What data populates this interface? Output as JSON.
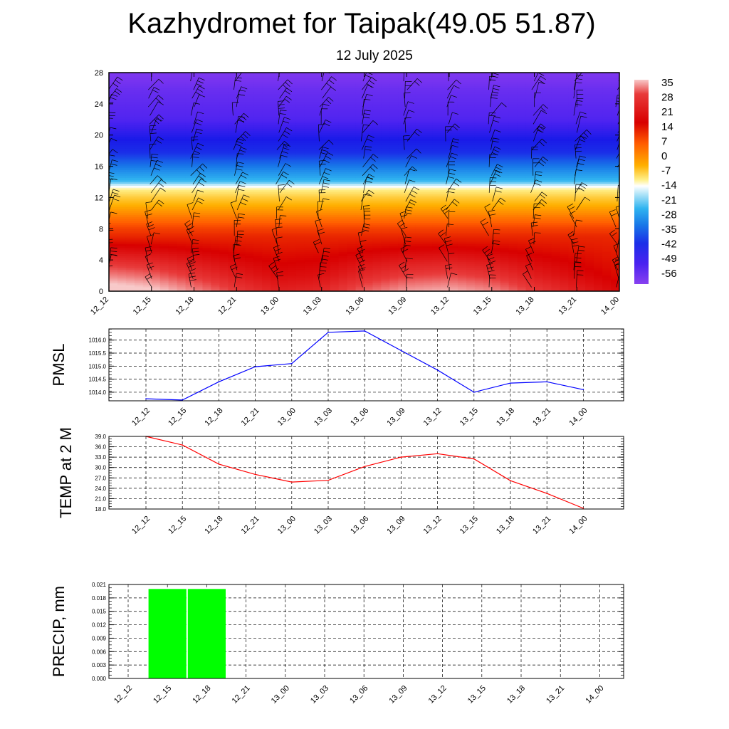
{
  "title": "Kazhydromet for Taipak(49.05 51.87)",
  "subtitle": "12 July 2025",
  "time_labels": [
    "12_12",
    "12_15",
    "12_18",
    "12_21",
    "13_00",
    "13_03",
    "13_06",
    "13_09",
    "13_12",
    "13_15",
    "13_18",
    "13_21",
    "14_00"
  ],
  "colors": {
    "pmsl_line": "#0000ff",
    "temp_line": "#ff0000",
    "precip_bar": "#00ff00",
    "grid": "#000000"
  },
  "chart_data": [
    {
      "type": "heatmap",
      "title": "",
      "xlabel": "",
      "ylabel": "",
      "x_categories": [
        "12_12",
        "12_15",
        "12_18",
        "12_21",
        "13_00",
        "13_03",
        "13_06",
        "13_09",
        "13_12",
        "13_15",
        "13_18",
        "13_21",
        "14_00"
      ],
      "y_ticks": [
        0,
        4,
        8,
        12,
        16,
        20,
        24,
        28
      ],
      "ylim": [
        0,
        28
      ],
      "colorbar_labels": [
        "35",
        "28",
        "21",
        "14",
        "7",
        "0",
        "-7",
        "-14",
        "-21",
        "-28",
        "-35",
        "-42",
        "-49",
        "-56"
      ],
      "colorbar_range": [
        -63,
        35
      ],
      "levels": [
        0,
        2,
        4,
        6,
        8,
        10,
        12,
        13,
        14,
        16,
        18,
        20,
        22,
        24,
        26,
        28
      ],
      "level_temps": [
        33,
        28,
        24,
        20,
        16,
        10,
        4,
        0,
        -20,
        -28,
        -36,
        -44,
        -50,
        -52,
        -54,
        -58
      ],
      "surface_temps": [
        38,
        36,
        32,
        28,
        25,
        26,
        30,
        33,
        34,
        32,
        28,
        25,
        22
      ],
      "wind_barbs": true
    },
    {
      "type": "line",
      "ylabel": "PMSL",
      "categories": [
        "12_12",
        "12_15",
        "12_18",
        "12_21",
        "13_00",
        "13_03",
        "13_06",
        "13_09",
        "13_12",
        "13_15",
        "13_18",
        "13_21",
        "14_00"
      ],
      "values": [
        1013.75,
        1013.7,
        1014.4,
        1014.98,
        1015.1,
        1016.3,
        1016.35,
        1015.6,
        1014.85,
        1014.0,
        1014.35,
        1014.4,
        1014.1
      ],
      "y_ticks": [
        "1014.0",
        "1014.5",
        "1015.0",
        "1015.5",
        "1016.0"
      ],
      "ylim": [
        1013.67,
        1016.43
      ],
      "grid": true
    },
    {
      "type": "line",
      "ylabel": "TEMP at 2 M",
      "categories": [
        "12_12",
        "12_15",
        "12_18",
        "12_21",
        "13_00",
        "13_03",
        "13_06",
        "13_09",
        "13_12",
        "13_15",
        "13_18",
        "13_21",
        "14_00"
      ],
      "values": [
        39.0,
        36.5,
        31.0,
        28.0,
        25.8,
        26.3,
        30.3,
        33.0,
        34.0,
        32.5,
        26.2,
        22.5,
        18.2
      ],
      "y_ticks": [
        "18.0",
        "21.0",
        "24.0",
        "27.0",
        "30.0",
        "33.0",
        "36.0",
        "39.0"
      ],
      "ylim": [
        18,
        39
      ],
      "grid": true
    },
    {
      "type": "bar",
      "ylabel": "PRECIP, mm",
      "categories": [
        "12_12",
        "12_15",
        "12_18",
        "12_21",
        "13_00",
        "13_03",
        "13_06",
        "13_09",
        "13_12",
        "13_15",
        "13_18",
        "13_21",
        "14_00"
      ],
      "values": [
        0,
        0.02,
        0.02,
        0,
        0,
        0,
        0,
        0,
        0,
        0,
        0,
        0,
        0
      ],
      "y_ticks": [
        "0.000",
        "0.003",
        "0.006",
        "0.009",
        "0.012",
        "0.015",
        "0.018",
        "0.021"
      ],
      "ylim": [
        0,
        0.021
      ],
      "grid": true
    }
  ]
}
